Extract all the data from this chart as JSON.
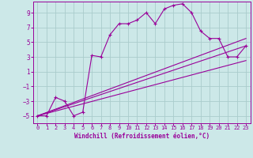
{
  "title": "",
  "xlabel": "Windchill (Refroidissement éolien,°C)",
  "ylabel": "",
  "bg_color": "#cce8e8",
  "grid_color": "#aacccc",
  "line_color": "#990099",
  "marker_color": "#990099",
  "xlim": [
    -0.5,
    23.5
  ],
  "ylim": [
    -6,
    10.5
  ],
  "xticks": [
    0,
    1,
    2,
    3,
    4,
    5,
    6,
    7,
    8,
    9,
    10,
    11,
    12,
    13,
    14,
    15,
    16,
    17,
    18,
    19,
    20,
    21,
    22,
    23
  ],
  "yticks": [
    -5,
    -3,
    -1,
    1,
    3,
    5,
    7,
    9
  ],
  "curve1_x": [
    0,
    1,
    2,
    3,
    4,
    5,
    6,
    7,
    8,
    9,
    10,
    11,
    12,
    13,
    14,
    15,
    16,
    17,
    18,
    19,
    20,
    21,
    22,
    23
  ],
  "curve1_y": [
    -5,
    -5,
    -2.5,
    -3,
    -5,
    -4.5,
    3.2,
    3.0,
    6.0,
    7.5,
    7.5,
    8.0,
    9.0,
    7.5,
    9.5,
    10.0,
    10.2,
    9.0,
    6.5,
    5.5,
    5.5,
    3.0,
    3.0,
    4.5
  ],
  "line2_x": [
    0,
    23
  ],
  "line2_y": [
    -5,
    4.5
  ],
  "line3_x": [
    0,
    23
  ],
  "line3_y": [
    -5,
    2.5
  ],
  "line4_x": [
    0,
    23
  ],
  "line4_y": [
    -5,
    5.5
  ]
}
